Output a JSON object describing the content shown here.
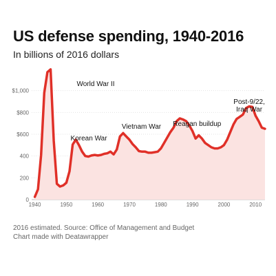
{
  "header": {
    "title": "US defense spending, 1940-2016",
    "subtitle": "In billions of 2016 dollars"
  },
  "footer": {
    "source": "2016 estimated. Source: Office of Management and Budget",
    "credit": "Chart made with Deatawrapper"
  },
  "chart_data": {
    "type": "area",
    "title": "US defense spending, 1940-2016",
    "subtitle": "In billions of 2016 dollars",
    "xlabel": "",
    "ylabel": "",
    "xlim": [
      1939,
      2013
    ],
    "ylim": [
      0,
      1200
    ],
    "grid": true,
    "x_ticks": [
      1940,
      1950,
      1960,
      1970,
      1980,
      1990,
      2000,
      2010
    ],
    "y_ticks": [
      0,
      200,
      400,
      600,
      800,
      1000
    ],
    "y_tick_labels": [
      "0",
      "200",
      "400",
      "$600",
      "$800",
      "$1,000"
    ],
    "line_color": "#e03028",
    "fill_color": "#fbe3e1",
    "x": [
      1940,
      1941,
      1942,
      1943,
      1944,
      1945,
      1946,
      1947,
      1948,
      1949,
      1950,
      1951,
      1952,
      1953,
      1954,
      1955,
      1956,
      1957,
      1958,
      1959,
      1960,
      1961,
      1962,
      1963,
      1964,
      1965,
      1966,
      1967,
      1968,
      1969,
      1970,
      1971,
      1972,
      1973,
      1974,
      1975,
      1976,
      1977,
      1978,
      1979,
      1980,
      1981,
      1982,
      1983,
      1984,
      1985,
      1986,
      1987,
      1988,
      1989,
      1990,
      1991,
      1992,
      1993,
      1994,
      1995,
      1996,
      1997,
      1998,
      1999,
      2000,
      2001,
      2002,
      2003,
      2004,
      2005,
      2006,
      2007,
      2008,
      2009,
      2010,
      2011,
      2012,
      2013
    ],
    "values": [
      25,
      95,
      410,
      980,
      1170,
      1195,
      540,
      145,
      120,
      130,
      155,
      260,
      505,
      550,
      500,
      440,
      400,
      395,
      405,
      410,
      405,
      410,
      420,
      425,
      440,
      415,
      460,
      580,
      610,
      580,
      550,
      510,
      480,
      445,
      440,
      440,
      430,
      430,
      435,
      440,
      470,
      520,
      570,
      620,
      660,
      720,
      745,
      735,
      720,
      680,
      630,
      560,
      590,
      560,
      520,
      500,
      480,
      470,
      470,
      480,
      500,
      550,
      620,
      690,
      740,
      760,
      780,
      840,
      855,
      850,
      770,
      720,
      660,
      650
    ],
    "annotations": [
      {
        "text": "World War II",
        "x": 1945
      },
      {
        "text": "Korean War",
        "x": 1952
      },
      {
        "text": "Vietnam War",
        "x": 1968
      },
      {
        "text": "Reagan buildup",
        "x": 1986
      },
      {
        "text": "Post-9/22,",
        "x": 2008
      },
      {
        "text": "Iraq War",
        "x": 2008
      }
    ]
  }
}
